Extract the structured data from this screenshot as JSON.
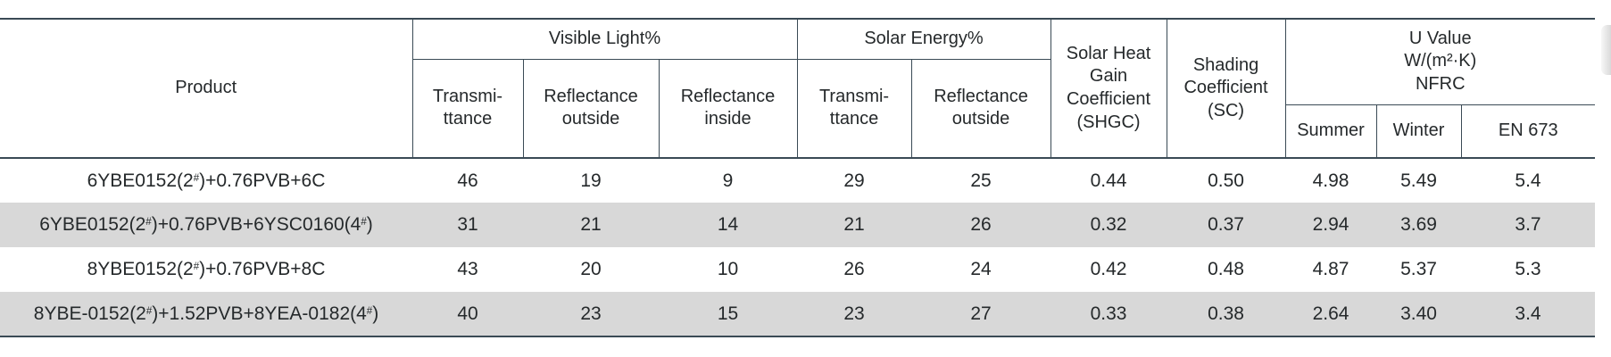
{
  "header": {
    "product_label": "Product",
    "visible_light": {
      "label": "Visible Light%",
      "columns": [
        "Transmi-\nttance",
        "Reflectance\noutside",
        "Reflectance\ninside"
      ]
    },
    "solar_energy": {
      "label": "Solar Energy%",
      "columns": [
        "Transmi-\nttance",
        "Reflectance\noutside"
      ]
    },
    "shgc_label": "Solar Heat\nGain\nCoefficient\n(SHGC)",
    "sc_label": "Shading\nCoefficient\n(SC)",
    "u_value": {
      "label": "U Value\nW/(m²·K)\nNFRC",
      "columns": [
        "Summer",
        "Winter",
        "EN 673"
      ]
    }
  },
  "rows": [
    {
      "product": "6YBE0152(2#)+0.76PVB+6C",
      "shaded": false,
      "values": [
        "46",
        "19",
        "9",
        "29",
        "25",
        "0.44",
        "0.50",
        "4.98",
        "5.49",
        "5.4"
      ]
    },
    {
      "product": "6YBE0152(2#)+0.76PVB+6YSC0160(4#)",
      "shaded": true,
      "values": [
        "31",
        "21",
        "14",
        "21",
        "26",
        "0.32",
        "0.37",
        "2.94",
        "3.69",
        "3.7"
      ]
    },
    {
      "product": "8YBE0152(2#)+0.76PVB+8C",
      "shaded": false,
      "values": [
        "43",
        "20",
        "10",
        "26",
        "24",
        "0.42",
        "0.48",
        "4.87",
        "5.37",
        "5.3"
      ]
    },
    {
      "product": "8YBE-0152(2#)+1.52PVB+8YEA-0182(4#)",
      "shaded": true,
      "values": [
        "40",
        "23",
        "15",
        "23",
        "27",
        "0.33",
        "0.38",
        "2.64",
        "3.40",
        "3.4"
      ]
    }
  ],
  "colors": {
    "line": "#3a4a55",
    "stripe": "#d8d8d8",
    "text": "#25292b"
  }
}
